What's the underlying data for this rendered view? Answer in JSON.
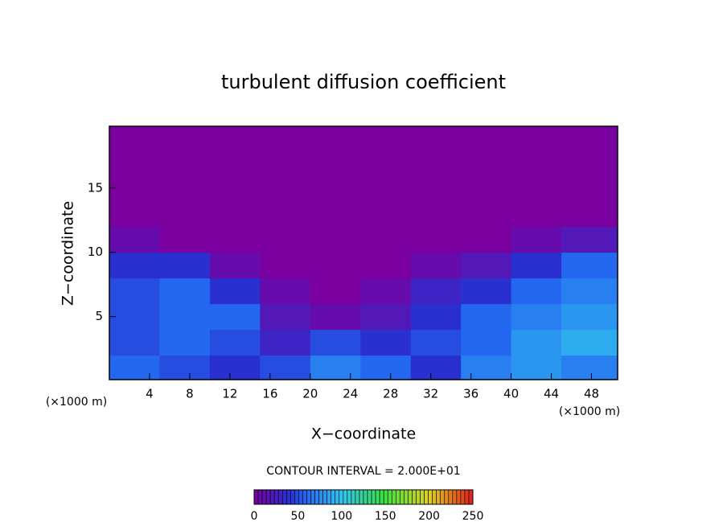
{
  "chart_data": {
    "type": "heatmap",
    "title": "turbulent diffusion coefficient",
    "x_label": "X−coordinate",
    "y_label": "Z−coordinate",
    "x_unit_labels": [
      "(×1000 m)",
      "(×1000 m)"
    ],
    "contour_note": "CONTOUR INTERVAL = 2.000E+01",
    "xlim": [
      0,
      50.6
    ],
    "ylim": [
      0.1,
      19.8
    ],
    "xticks": [
      4,
      8,
      12,
      16,
      20,
      24,
      28,
      32,
      36,
      40,
      44,
      48
    ],
    "yticks": [
      5,
      10,
      15
    ],
    "xbins": [
      0,
      5,
      10,
      15,
      20,
      25,
      30,
      35,
      40,
      45,
      50.6
    ],
    "ybins": [
      0.1,
      2,
      4,
      6,
      8,
      10,
      12,
      19.8
    ],
    "z": [
      [
        60,
        50,
        40,
        50,
        70,
        60,
        40,
        70,
        80,
        70
      ],
      [
        50,
        60,
        50,
        30,
        50,
        40,
        50,
        60,
        80,
        90
      ],
      [
        50,
        60,
        60,
        20,
        10,
        20,
        40,
        60,
        70,
        80
      ],
      [
        50,
        60,
        40,
        10,
        0,
        10,
        30,
        40,
        60,
        70
      ],
      [
        40,
        40,
        10,
        0,
        0,
        0,
        10,
        20,
        40,
        60
      ],
      [
        10,
        0,
        0,
        0,
        0,
        0,
        0,
        0,
        10,
        20
      ],
      [
        0,
        0,
        0,
        0,
        0,
        0,
        0,
        0,
        0,
        0
      ]
    ],
    "colormap": [
      "#7a00a0",
      "#2a30d0",
      "#2468f0",
      "#30c4f0",
      "#40e040",
      "#e0d020",
      "#e02020"
    ],
    "colormap_stops": [
      0,
      40,
      60,
      100,
      150,
      200,
      250
    ],
    "clim": [
      0,
      250
    ],
    "cticks": [
      0,
      50,
      100,
      150,
      200,
      250
    ]
  }
}
